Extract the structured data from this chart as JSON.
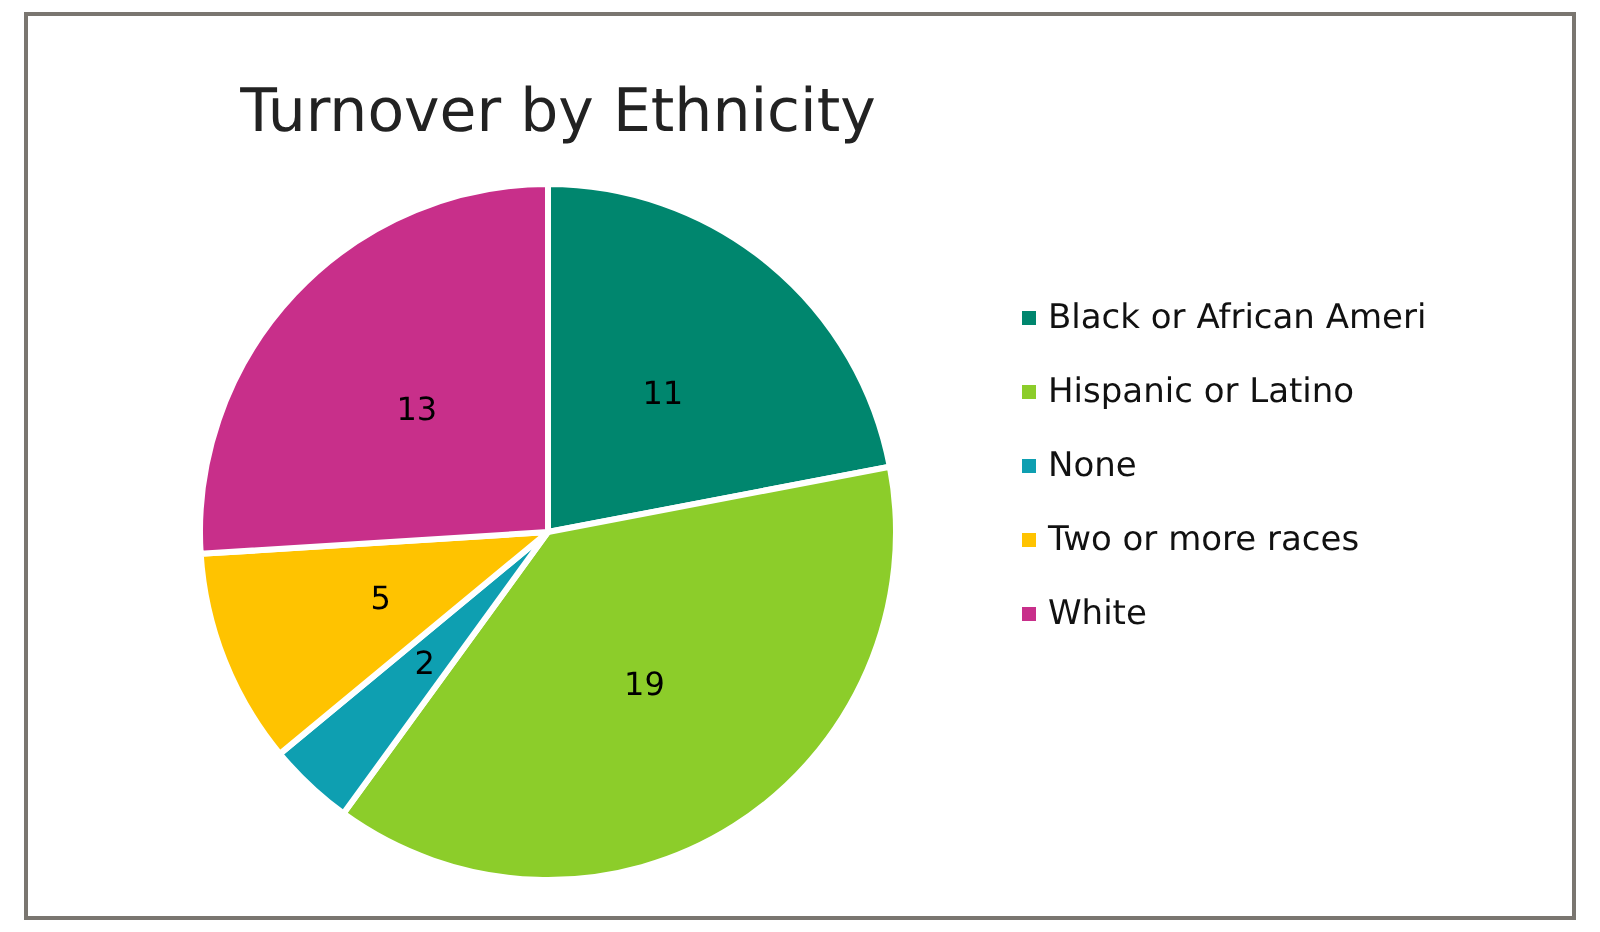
{
  "chart_data": {
    "type": "pie",
    "title": "Turnover by Ethnicity",
    "categories": [
      "Black or African Ameri",
      "Hispanic or Latino",
      "None",
      "Two or more races",
      "White"
    ],
    "values": [
      11,
      19,
      2,
      5,
      13
    ],
    "colors": [
      "#00866e",
      "#8ccd2a",
      "#0e9fb1",
      "#ffc300",
      "#c82f8a"
    ],
    "data_labels": true,
    "legend": "right"
  }
}
